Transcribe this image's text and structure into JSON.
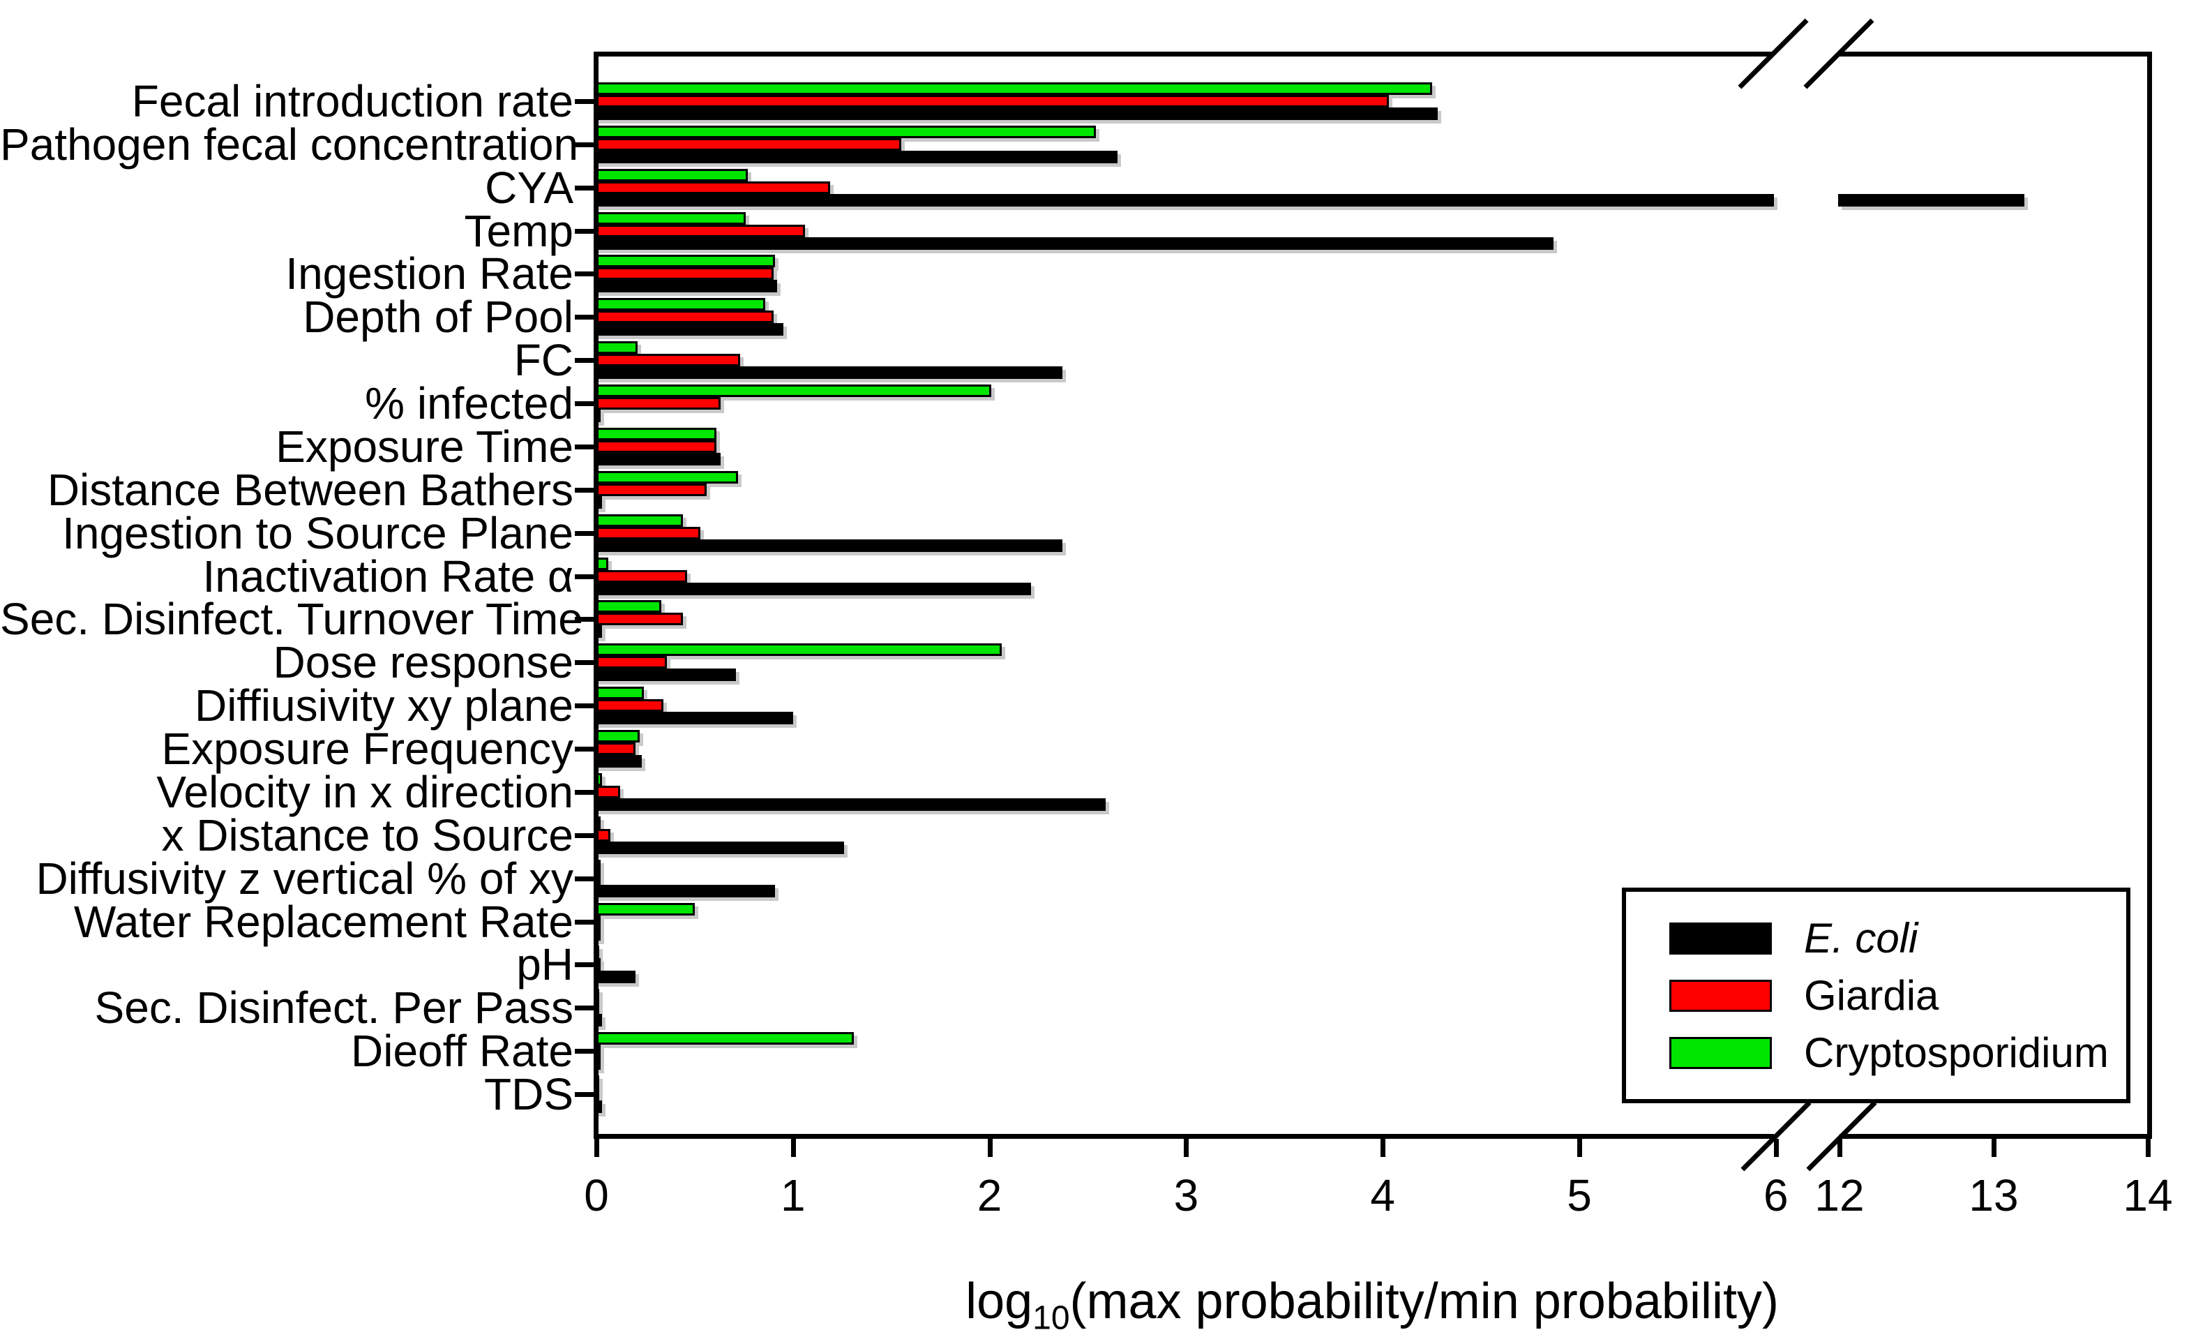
{
  "chart_data": {
    "type": "bar",
    "orientation": "horizontal",
    "xlabel_prefix": "log",
    "xlabel_sub": "10",
    "xlabel_suffix": "(max probability/min probability)",
    "grid": false,
    "legend_position": "inside-bottom-right",
    "x_axis": {
      "segment1_ticks": [
        "0",
        "1",
        "2",
        "3",
        "4",
        "5",
        "6"
      ],
      "segment2_ticks": [
        "12",
        "13",
        "14"
      ],
      "segment1_range": [
        0,
        6
      ],
      "segment2_range": [
        12,
        14
      ],
      "axis_break": {
        "after": 6,
        "resume": 12
      }
    },
    "categories": [
      "Fecal introduction rate",
      "Pathogen fecal concentration",
      "CYA",
      "Temp",
      "Ingestion Rate",
      "Depth of Pool",
      "FC",
      "% infected",
      "Exposure Time",
      "Distance Between Bathers",
      "Ingestion to Source Plane",
      "Inactivation Rate α",
      "Sec. Disinfect. Turnover Time",
      "Dose response",
      "Diffiusivity xy plane",
      "Exposure Frequency",
      "Velocity in x direction",
      "x Distance to Source",
      "Diffusivity z vertical % of xy",
      "Water Replacement Rate",
      "pH",
      "Sec. Disinfect. Per Pass",
      "Dieoff Rate",
      "TDS"
    ],
    "series": [
      {
        "name": "E. coli",
        "color": "#000000",
        "italic": true,
        "values": [
          4.28,
          2.65,
          13.2,
          4.87,
          0.92,
          0.95,
          2.37,
          0.02,
          0.63,
          0.03,
          2.37,
          2.21,
          0.03,
          0.71,
          1.0,
          0.23,
          2.59,
          1.26,
          0.91,
          0.02,
          0.2,
          0.03,
          0.02,
          0.03
        ]
      },
      {
        "name": "Giardia",
        "color": "#ff0000",
        "italic": false,
        "values": [
          4.03,
          1.55,
          1.19,
          1.06,
          0.9,
          0.9,
          0.73,
          0.63,
          0.61,
          0.56,
          0.53,
          0.46,
          0.44,
          0.36,
          0.34,
          0.2,
          0.12,
          0.07,
          0.02,
          0.02,
          0.02,
          0.01,
          0.02,
          0.015
        ]
      },
      {
        "name": "Cryptosporidium",
        "color": "#00e600",
        "italic": false,
        "values": [
          4.25,
          2.54,
          0.77,
          0.76,
          0.91,
          0.86,
          0.21,
          2.01,
          0.61,
          0.72,
          0.44,
          0.06,
          0.33,
          2.06,
          0.24,
          0.22,
          0.03,
          0.02,
          0.02,
          0.5,
          0.01,
          0.01,
          1.31,
          0.015
        ]
      }
    ]
  }
}
